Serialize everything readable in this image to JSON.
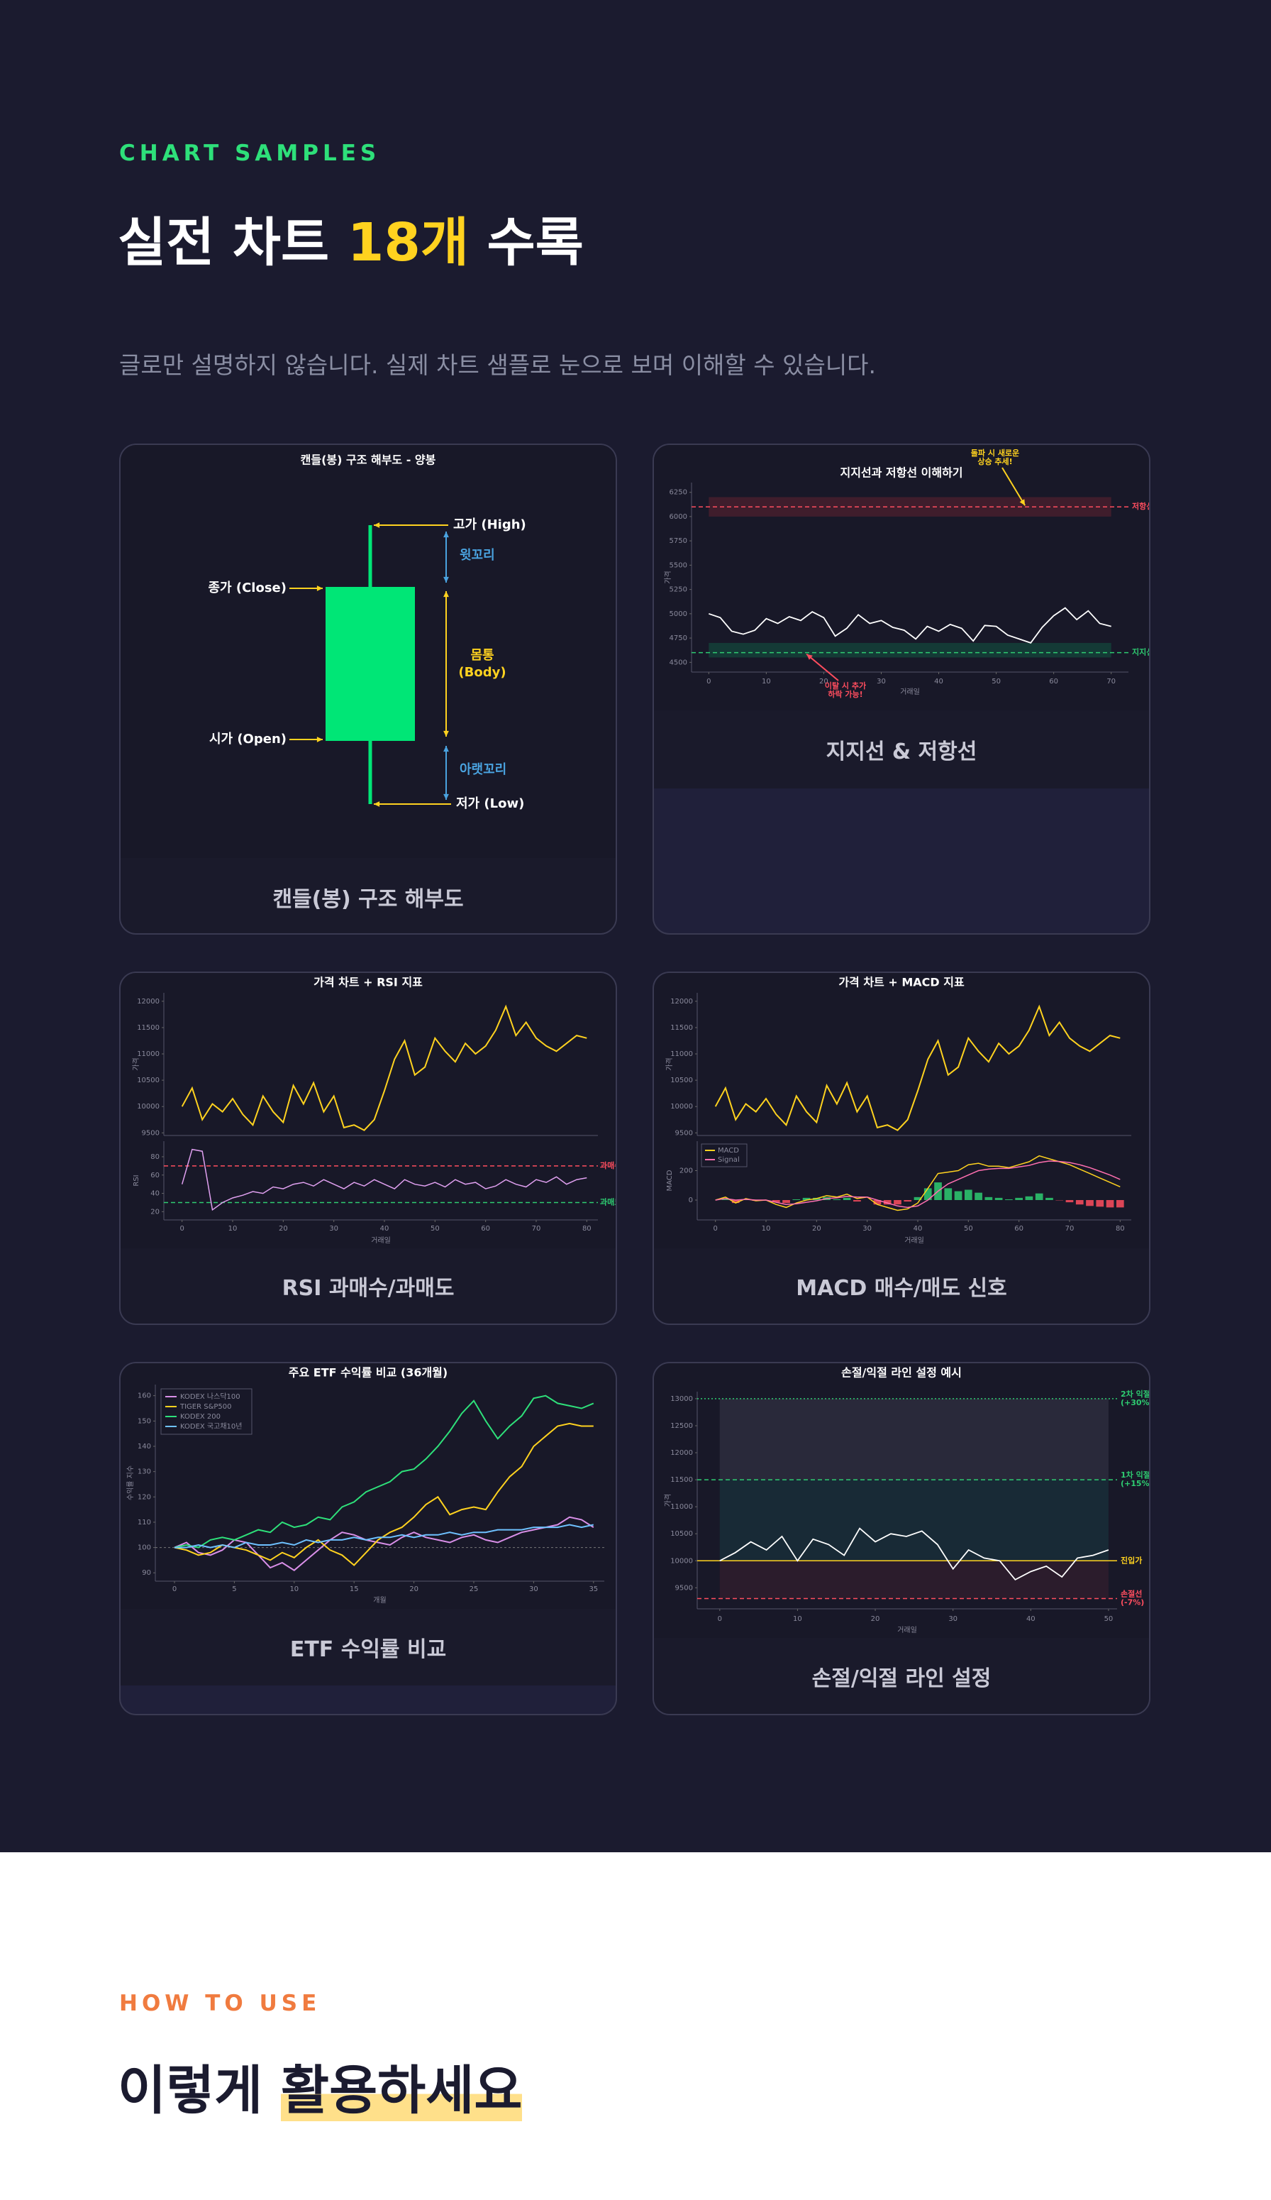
{
  "header": {
    "eyebrow": "CHART SAMPLES",
    "title_prefix": "실전 차트 ",
    "title_highlight": "18개",
    "title_suffix": " 수록",
    "subtitle": "글로만 설명하지 않습니다. 실제 차트 샘플로 눈으로 보며 이해할 수 있습니다."
  },
  "cards": [
    {
      "caption": "캔들(봉) 구조 해부도"
    },
    {
      "caption": "지지선 & 저항선"
    },
    {
      "caption": "RSI 과매수/과매도"
    },
    {
      "caption": "MACD 매수/매도 신호"
    },
    {
      "caption": "ETF 수익률 비교"
    },
    {
      "caption": "손절/익절 라인 설정"
    }
  ],
  "chart_data": [
    {
      "type": "anatomy",
      "title": "캔들(봉) 구조 해부도 - 양봉",
      "body_color": "#00e676",
      "labels": {
        "high": "고가 (High)",
        "upper_wick": "윗꼬리",
        "close": "종가 (Close)",
        "body": [
          "몸통",
          "(Body)"
        ],
        "open": "시가 (Open)",
        "lower_wick": "아랫꼬리",
        "low": "저가 (Low)"
      }
    },
    {
      "type": "levels",
      "title": "지지선과 저항선 이해하기",
      "x": [
        0,
        2,
        4,
        6,
        8,
        10,
        12,
        14,
        16,
        18,
        20,
        22,
        24,
        26,
        28,
        30,
        32,
        34,
        36,
        38,
        40,
        42,
        44,
        46,
        48,
        50,
        52,
        54,
        56,
        58,
        60,
        62,
        64,
        66,
        68,
        70
      ],
      "series": [
        {
          "color": "#ffffff",
          "values": [
            5000,
            4960,
            4820,
            4790,
            4830,
            4950,
            4900,
            4970,
            4930,
            5020,
            4960,
            4770,
            4850,
            4990,
            4900,
            4930,
            4860,
            4830,
            4740,
            4870,
            4820,
            4890,
            4850,
            4720,
            4880,
            4870,
            4780,
            4740,
            4700,
            4860,
            4980,
            5060,
            4940,
            5030,
            4900,
            4870
          ]
        }
      ],
      "xlim": [
        -3,
        73
      ],
      "ylim": [
        4400,
        6350
      ],
      "xticks": [
        0,
        10,
        20,
        30,
        40,
        50,
        60,
        70
      ],
      "yticks": [
        4500,
        4750,
        5000,
        5250,
        5500,
        5750,
        6000,
        6250
      ],
      "xlabel": "거래일",
      "ylabel": "가격",
      "zones": [
        {
          "from": 6000,
          "to": 6200,
          "color": "#3f1d2c"
        },
        {
          "from": 4550,
          "to": 4700,
          "color": "#143a36"
        }
      ],
      "levels": [
        {
          "value": 6100,
          "label": [
            "저항선"
          ],
          "color": "#ff4d5e",
          "style": "dashed"
        },
        {
          "value": 4600,
          "label": [
            "지지선"
          ],
          "color": "#2ecc71",
          "style": "dashed"
        }
      ],
      "annotations": [
        {
          "lines": [
            "돌파 시 새로운",
            "상승 추세!"
          ],
          "color": "#ffd21f"
        },
        {
          "lines": [
            "이탈 시 추가",
            "하락 가능!"
          ],
          "color": "#ff4d5e"
        }
      ]
    },
    {
      "type": "indicator",
      "title": "가격 차트 + RSI 지표",
      "x": [
        0,
        2,
        4,
        6,
        8,
        10,
        12,
        14,
        16,
        18,
        20,
        22,
        24,
        26,
        28,
        30,
        32,
        34,
        36,
        38,
        40,
        42,
        44,
        46,
        48,
        50,
        52,
        54,
        56,
        58,
        60,
        62,
        64,
        66,
        68,
        70,
        72,
        74,
        76,
        78,
        80
      ],
      "xlim": [
        -3.6,
        82.2
      ],
      "xticks": [
        0,
        10,
        20,
        30,
        40,
        50,
        60,
        70,
        80
      ],
      "xlabel": "거래일",
      "price": {
        "ylabel": "가격",
        "color": "#ffd21f",
        "ylim": [
          9450,
          12160
        ],
        "yticks": [
          9500,
          10000,
          10500,
          11000,
          11500,
          12000
        ],
        "values": [
          10000,
          10350,
          9750,
          10050,
          9900,
          10150,
          9850,
          9650,
          10200,
          9900,
          9700,
          10400,
          10050,
          10450,
          9900,
          10200,
          9600,
          9650,
          9550,
          9750,
          10300,
          10900,
          11250,
          10600,
          10750,
          11300,
          11050,
          10850,
          11200,
          11000,
          11150,
          11450,
          11900,
          11350,
          11600,
          11300,
          11150,
          11050,
          11200,
          11350,
          11300
        ]
      },
      "sub": {
        "ylabel": "RSI",
        "ylim": [
          11,
          97
        ],
        "yticks": [
          20,
          40,
          60,
          80
        ],
        "series": [
          {
            "color": "#e0a0f0",
            "values": [
              50,
              88,
              86,
              22,
              30,
              35,
              38,
              42,
              40,
              47,
              45,
              50,
              52,
              48,
              55,
              50,
              45,
              52,
              48,
              55,
              50,
              45,
              55,
              50,
              48,
              52,
              47,
              55,
              50,
              52,
              45,
              48,
              55,
              50,
              47,
              55,
              52,
              58,
              50,
              55,
              57
            ]
          }
        ],
        "levels": [
          {
            "value": 70,
            "label": [
              "과매수"
            ],
            "color": "#ff4d5e",
            "style": "dashed"
          },
          {
            "value": 30,
            "label": [
              "과매도"
            ],
            "color": "#2ecc71",
            "style": "dashed"
          }
        ]
      }
    },
    {
      "type": "indicator",
      "title": "가격 차트 + MACD 지표",
      "x": [
        0,
        2,
        4,
        6,
        8,
        10,
        12,
        14,
        16,
        18,
        20,
        22,
        24,
        26,
        28,
        30,
        32,
        34,
        36,
        38,
        40,
        42,
        44,
        46,
        48,
        50,
        52,
        54,
        56,
        58,
        60,
        62,
        64,
        66,
        68,
        70,
        72,
        74,
        76,
        78,
        80
      ],
      "xlim": [
        -3.6,
        82.2
      ],
      "xticks": [
        0,
        10,
        20,
        30,
        40,
        50,
        60,
        70,
        80
      ],
      "xlabel": "거래일",
      "price": {
        "ylabel": "가격",
        "color": "#ffd21f",
        "ylim": [
          9450,
          12160
        ],
        "yticks": [
          9500,
          10000,
          10500,
          11000,
          11500,
          12000
        ],
        "values": [
          10000,
          10350,
          9750,
          10050,
          9900,
          10150,
          9850,
          9650,
          10200,
          9900,
          9700,
          10400,
          10050,
          10450,
          9900,
          10200,
          9600,
          9650,
          9550,
          9750,
          10300,
          10900,
          11250,
          10600,
          10750,
          11300,
          11050,
          10850,
          11200,
          11000,
          11150,
          11450,
          11900,
          11350,
          11600,
          11300,
          11150,
          11050,
          11200,
          11350,
          11300
        ]
      },
      "sub": {
        "ylabel": "MACD",
        "ylim": [
          -135,
          400
        ],
        "yticks": [
          0,
          200
        ],
        "legend": "upper left",
        "series": [
          {
            "name": "MACD",
            "color": "#ffd21f",
            "values": [
              0,
              20,
              -20,
              10,
              -5,
              0,
              -30,
              -50,
              -20,
              0,
              10,
              30,
              20,
              40,
              10,
              20,
              -30,
              -50,
              -70,
              -60,
              -20,
              80,
              180,
              190,
              200,
              240,
              250,
              230,
              230,
              220,
              240,
              260,
              300,
              280,
              260,
              240,
              210,
              180,
              150,
              120,
              90
            ]
          },
          {
            "name": "Signal",
            "color": "#ff6fb0",
            "values": [
              0,
              10,
              0,
              5,
              0,
              0,
              -15,
              -30,
              -25,
              -15,
              -5,
              10,
              15,
              25,
              20,
              20,
              0,
              -20,
              -40,
              -50,
              -40,
              0,
              60,
              110,
              140,
              170,
              200,
              210,
              215,
              215,
              225,
              235,
              255,
              265,
              262,
              255,
              240,
              220,
              195,
              170,
              140
            ]
          }
        ],
        "histogram": {
          "up_color": "#2ecc71",
          "down_color": "#ff4d5e",
          "values": [
            0,
            10,
            -20,
            5,
            -5,
            0,
            -15,
            -20,
            5,
            15,
            15,
            20,
            5,
            15,
            -10,
            0,
            -30,
            -30,
            -30,
            -10,
            20,
            80,
            120,
            80,
            60,
            70,
            50,
            20,
            15,
            5,
            15,
            25,
            45,
            15,
            -2,
            -15,
            -30,
            -40,
            -45,
            -50,
            -50
          ]
        }
      }
    },
    {
      "type": "line",
      "title": "주요 ETF 수익률 비교 (36개월)",
      "x": [
        0,
        1,
        2,
        3,
        4,
        5,
        6,
        7,
        8,
        9,
        10,
        11,
        12,
        13,
        14,
        15,
        16,
        17,
        18,
        19,
        20,
        21,
        22,
        23,
        24,
        25,
        26,
        27,
        28,
        29,
        30,
        31,
        32,
        33,
        34,
        35
      ],
      "xlim": [
        -1.6,
        35.9
      ],
      "ylim": [
        86.7,
        164.4
      ],
      "xticks": [
        0,
        5,
        10,
        15,
        20,
        25,
        30,
        35
      ],
      "yticks": [
        90,
        100,
        110,
        120,
        130,
        140,
        150,
        160
      ],
      "xlabel": "개월",
      "ylabel": "수익률 지수",
      "legend": "upper left",
      "reference_line": 100,
      "series": [
        {
          "name": "KODEX 나스닥100",
          "color": "#d98fe8",
          "values": [
            100,
            102,
            98,
            97,
            99,
            103,
            102,
            97,
            92,
            94,
            91,
            95,
            99,
            103,
            106,
            105,
            103,
            102,
            101,
            104,
            106,
            104,
            103,
            102,
            104,
            105,
            103,
            102,
            104,
            106,
            107,
            108,
            109,
            112,
            111,
            108
          ]
        },
        {
          "name": "TIGER S&P500",
          "color": "#ffd21f",
          "values": [
            100,
            99,
            97,
            98,
            101,
            100,
            99,
            97,
            95,
            98,
            96,
            100,
            103,
            99,
            97,
            93,
            98,
            103,
            106,
            108,
            112,
            117,
            120,
            113,
            115,
            116,
            115,
            122,
            128,
            132,
            140,
            144,
            148,
            149,
            148,
            148
          ]
        },
        {
          "name": "KODEX 200",
          "color": "#2ee07a",
          "values": [
            100,
            101,
            100,
            103,
            104,
            103,
            105,
            107,
            106,
            110,
            108,
            109,
            112,
            111,
            116,
            118,
            122,
            124,
            126,
            130,
            131,
            135,
            140,
            146,
            153,
            158,
            150,
            143,
            148,
            152,
            159,
            160,
            157,
            156,
            155,
            157
          ]
        },
        {
          "name": "KODEX 국고채10년",
          "color": "#6ec1ff",
          "values": [
            100,
            100,
            101,
            100,
            101,
            100,
            102,
            101,
            101,
            102,
            101,
            103,
            102,
            103,
            103,
            104,
            103,
            104,
            104,
            105,
            104,
            105,
            105,
            106,
            105,
            106,
            106,
            107,
            107,
            107,
            108,
            108,
            108,
            109,
            108,
            109
          ]
        }
      ]
    },
    {
      "type": "levels",
      "title": "손절/익절 라인 설정 예시",
      "x": [
        0,
        2,
        4,
        6,
        8,
        10,
        12,
        14,
        16,
        18,
        20,
        22,
        24,
        26,
        28,
        30,
        32,
        34,
        36,
        38,
        40,
        42,
        44,
        46,
        48,
        50
      ],
      "series": [
        {
          "color": "#ffffff",
          "values": [
            10000,
            10150,
            10350,
            10200,
            10450,
            10000,
            10400,
            10300,
            10100,
            10600,
            10350,
            10500,
            10450,
            10550,
            10300,
            9850,
            10200,
            10050,
            10000,
            9650,
            9800,
            9900,
            9700,
            10050,
            10100,
            10200
          ]
        }
      ],
      "xlim": [
        -2.9,
        51.1
      ],
      "ylim": [
        9110,
        13130
      ],
      "xticks": [
        0,
        10,
        20,
        30,
        40,
        50
      ],
      "yticks": [
        9500,
        10000,
        10500,
        11000,
        11500,
        12000,
        12500,
        13000
      ],
      "xlabel": "거래일",
      "ylabel": "가격",
      "zones": [
        {
          "from": 11500,
          "to": 13000,
          "color": "#29293a"
        },
        {
          "from": 10000,
          "to": 11500,
          "color": "#182a36"
        },
        {
          "from": 9300,
          "to": 10000,
          "color": "#2b1c2c"
        }
      ],
      "levels": [
        {
          "value": 13000,
          "label": [
            "2차 익절",
            "(+30%)"
          ],
          "color": "#2ecc71",
          "style": "dotted"
        },
        {
          "value": 11500,
          "label": [
            "1차 익절",
            "(+15%)"
          ],
          "color": "#2ecc71",
          "style": "dashed"
        },
        {
          "value": 10000,
          "label": [
            "진입가"
          ],
          "color": "#ffd21f",
          "style": "solid"
        },
        {
          "value": 9300,
          "label": [
            "손절선",
            "(-7%)"
          ],
          "color": "#ff4d5e",
          "style": "dashed"
        }
      ]
    }
  ],
  "how_to": {
    "eyebrow": "HOW TO USE",
    "title_prefix": "이렇게 ",
    "title_highlight": "활용하세요"
  }
}
